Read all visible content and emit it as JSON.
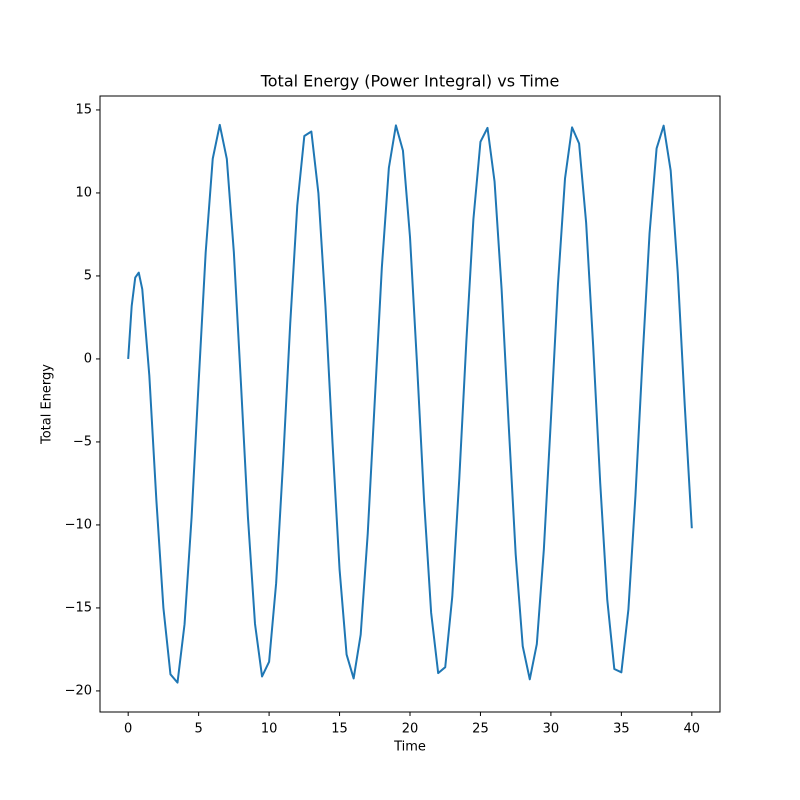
{
  "chart_data": {
    "type": "line",
    "title": "Total Energy (Power Integral) vs Time",
    "xlabel": "Time",
    "ylabel": "Total Energy",
    "x": [
      0,
      0.25,
      0.5,
      0.75,
      1.0,
      1.5,
      2.0,
      2.5,
      3.0,
      3.5,
      4.0,
      4.5,
      5.0,
      5.5,
      6.0,
      6.5,
      7.0,
      7.5,
      8.0,
      8.5,
      9.0,
      9.5,
      10.0,
      10.5,
      11.0,
      11.5,
      12.0,
      12.5,
      13.0,
      13.5,
      14.0,
      14.5,
      15.0,
      15.5,
      16.0,
      16.5,
      17.0,
      17.5,
      18.0,
      18.5,
      19.0,
      19.5,
      20.0,
      20.5,
      21.0,
      21.5,
      22.0,
      22.5,
      23.0,
      23.5,
      24.0,
      24.5,
      25.0,
      25.5,
      26.0,
      26.5,
      27.0,
      27.5,
      28.0,
      28.5,
      29.0,
      29.5,
      30.0,
      30.5,
      31.0,
      31.5,
      32.0,
      32.5,
      33.0,
      33.5,
      34.0,
      34.5,
      35.0,
      35.5,
      36.0,
      36.5,
      37.0,
      37.5,
      38.0,
      38.5,
      39.0,
      39.5,
      40.0
    ],
    "series": [
      {
        "name": "Total Energy",
        "color": "#1f77b4",
        "values": [
          0,
          3.2,
          4.9,
          5.2,
          4.2,
          -1.0,
          -8.5,
          -15.0,
          -19.0,
          -19.5,
          -15.98,
          -9.55,
          -1.41,
          6.42,
          12.06,
          14.1,
          12.05,
          6.42,
          -1.43,
          -9.55,
          -15.96,
          -19.13,
          -18.25,
          -13.51,
          -6.11,
          2.14,
          9.24,
          13.43,
          13.7,
          9.98,
          3.18,
          -5.04,
          -12.67,
          -17.81,
          -19.25,
          -16.61,
          -10.53,
          -2.52,
          5.48,
          11.51,
          14.07,
          12.55,
          7.34,
          -0.33,
          -8.55,
          -15.29,
          -18.93,
          -18.57,
          -14.32,
          -7.18,
          1.06,
          8.42,
          13.08,
          13.92,
          10.69,
          4.21,
          -3.92,
          -11.77,
          -17.31,
          -19.3,
          -17.18,
          -11.47,
          -3.64,
          4.48,
          10.86,
          13.95,
          12.98,
          8.2,
          0.77,
          -7.49,
          -14.51,
          -18.68,
          -18.88,
          -15.09,
          -8.24,
          -0.03,
          7.57,
          12.68,
          14.05,
          11.34,
          5.2,
          -2.82,
          -10.2
        ]
      }
    ],
    "xlim": [
      -2,
      42
    ],
    "ylim": [
      -21.27,
      15.84
    ],
    "xticks": [
      0,
      5,
      10,
      15,
      20,
      25,
      30,
      35,
      40
    ],
    "yticks": [
      {
        "value": -20,
        "label": "−20"
      },
      {
        "value": -15,
        "label": "−15"
      },
      {
        "value": -10,
        "label": "−10"
      },
      {
        "value": -5,
        "label": "−5"
      },
      0,
      5,
      10,
      15
    ],
    "grid": false
  }
}
